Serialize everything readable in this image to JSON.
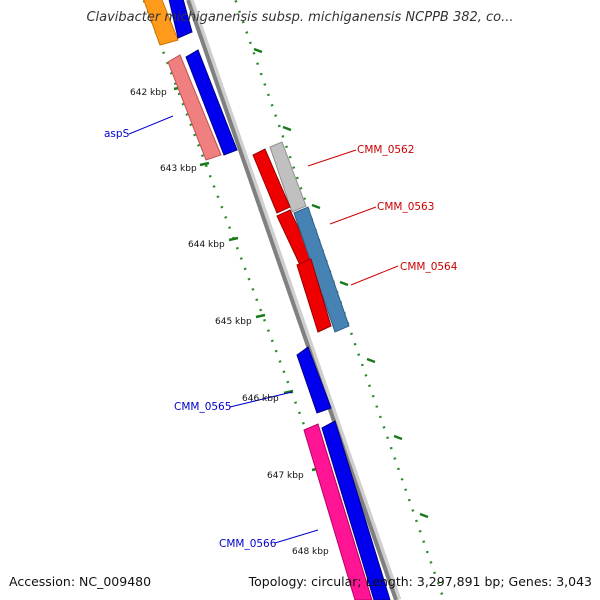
{
  "title": "Clavibacter michiganensis subsp. michiganensis NCPPB 382, co...",
  "footer": {
    "accession": "Accession: NC_009480",
    "topology": "Topology: circular; Length: 3,297,891 bp; Genes: 3,043"
  },
  "ticks": [
    "642 kbp",
    "643 kbp",
    "644 kbp",
    "645 kbp",
    "646 kbp",
    "647 kbp",
    "648 kbp"
  ],
  "genes": [
    {
      "name": "aspS",
      "color": "#0000cc"
    },
    {
      "name": "CMM_0562",
      "color": "#cc0000"
    },
    {
      "name": "CMM_0563",
      "color": "#cc0000"
    },
    {
      "name": "CMM_0564",
      "color": "#cc0000"
    },
    {
      "name": "CMM_0565",
      "color": "#0000cc"
    },
    {
      "name": "CMM_0566",
      "color": "#0000cc"
    }
  ],
  "colors": {
    "backbone": "#888888",
    "forward_cds": "#0000ee",
    "reverse_cds": "#ee0000",
    "rna": "#ff1493",
    "salmon": "#f08080",
    "steelblue": "#4682b4",
    "gray_feature": "#c0c0c0",
    "orange": "#ff8c00",
    "tick_green": "#006400"
  }
}
